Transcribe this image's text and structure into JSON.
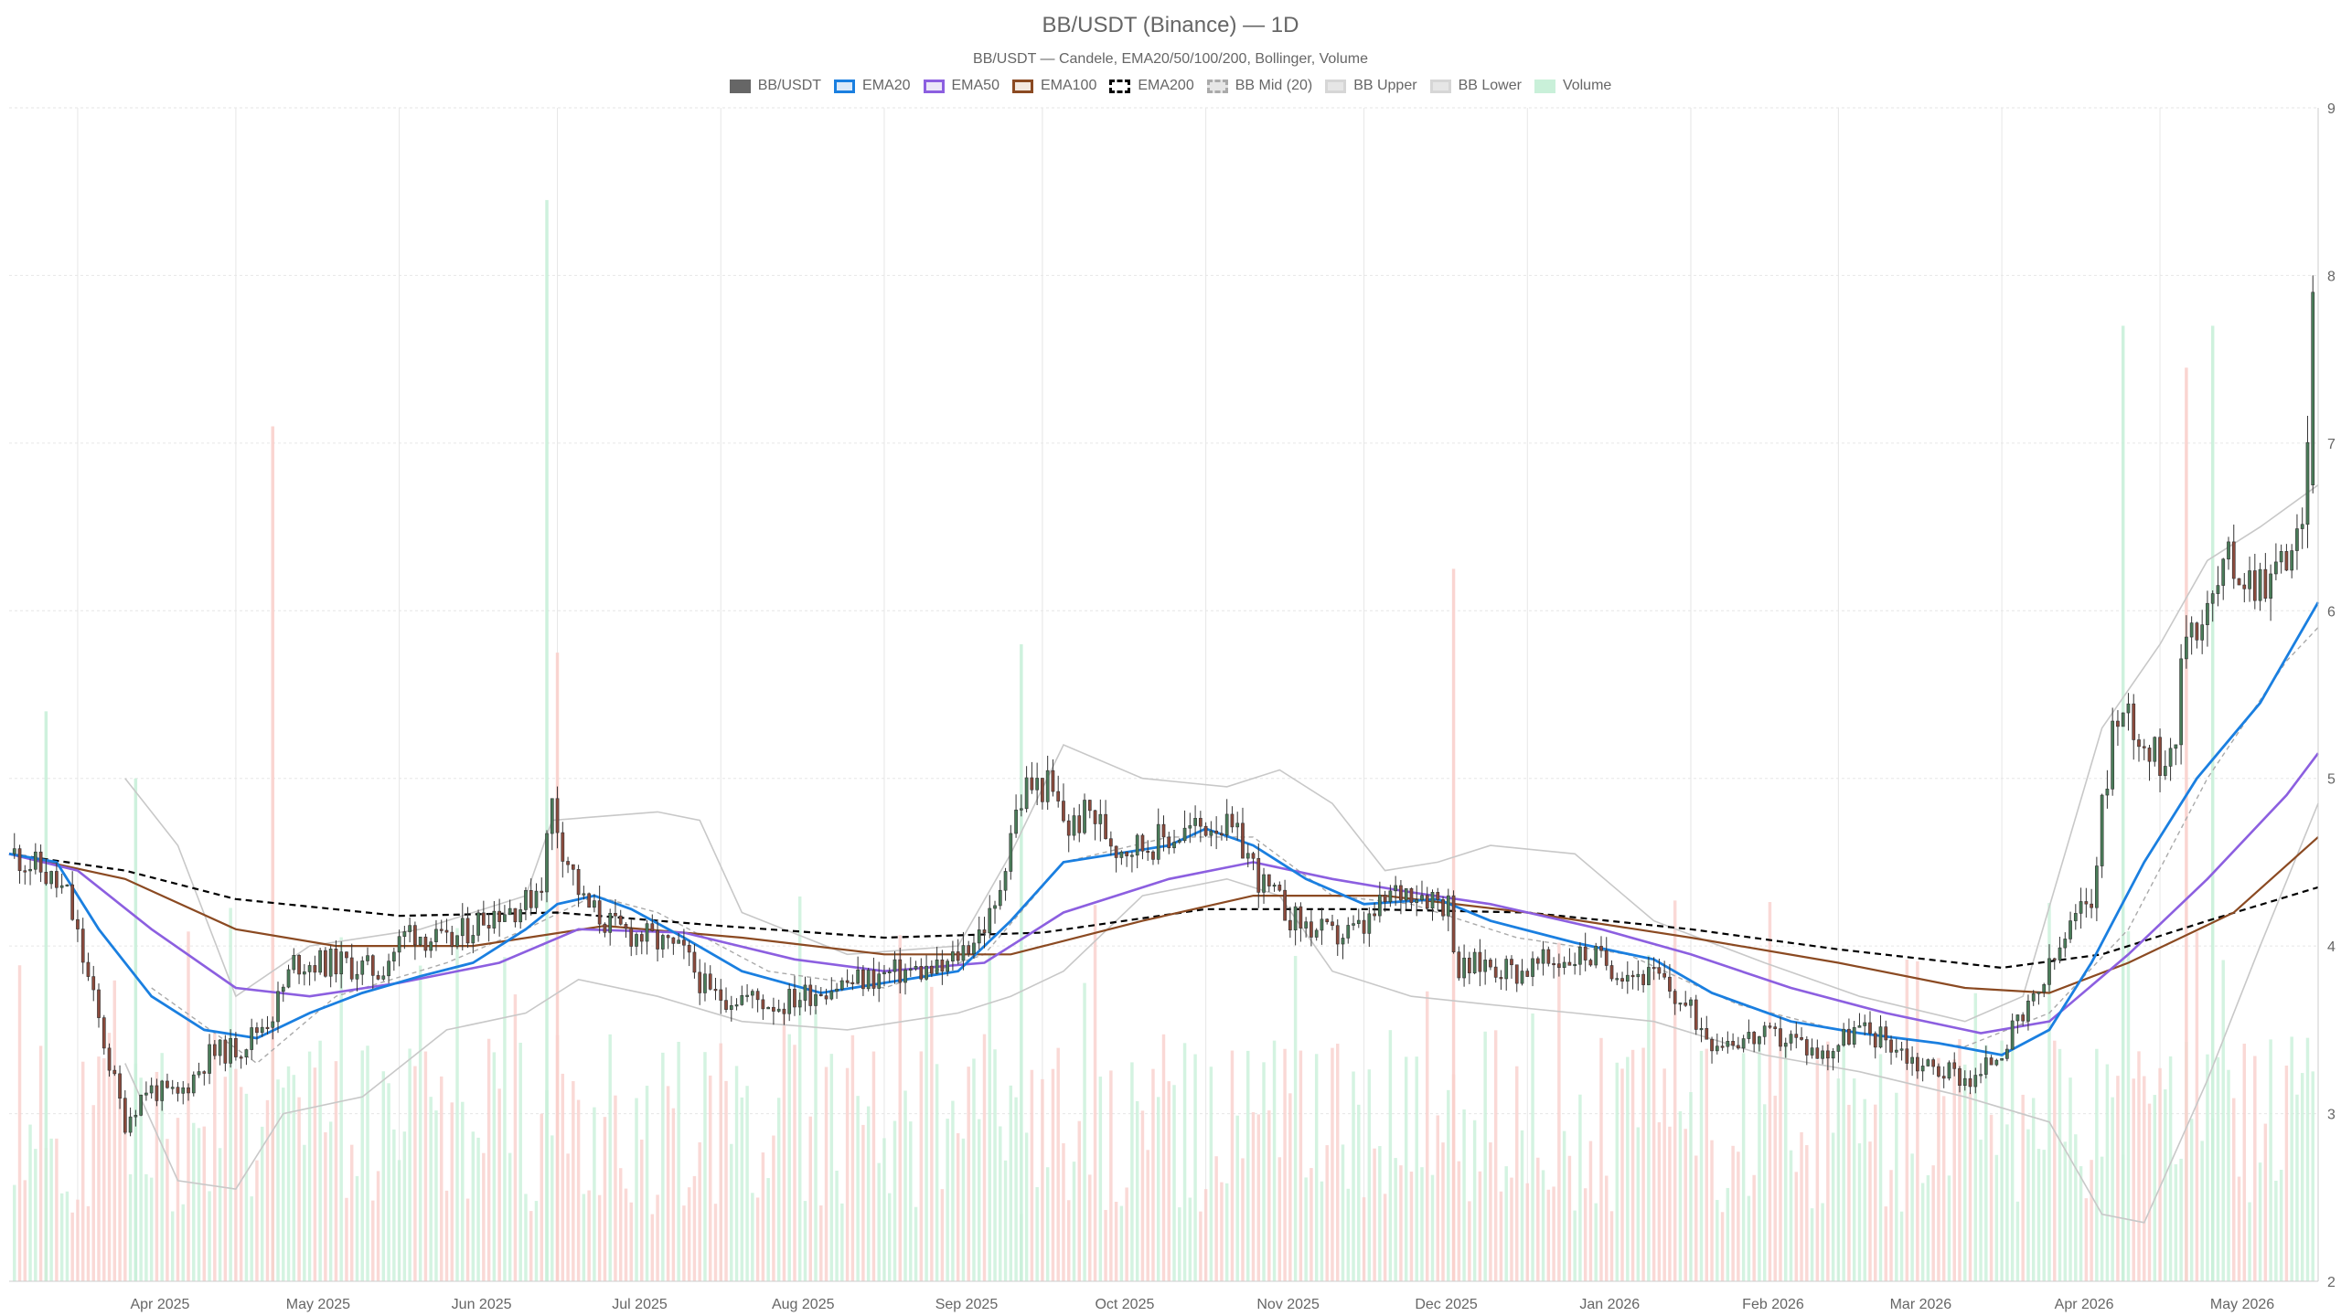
{
  "title": "BB/USDT (Binance) — 1D",
  "subtitle": "BB/USDT — Candele, EMA20/50/100/200, Bollinger, Volume",
  "legend": [
    {
      "label": "BB/USDT",
      "icon": "candle-swatch",
      "fill": "#666666",
      "stroke": "#666666",
      "dashed": false
    },
    {
      "label": "EMA20",
      "icon": "line-swatch",
      "fill": "#dbe9f9",
      "stroke": "#1a7fe0",
      "dashed": false
    },
    {
      "label": "EMA50",
      "icon": "line-swatch",
      "fill": "#ece6f8",
      "stroke": "#8c5fe0",
      "dashed": false
    },
    {
      "label": "EMA100",
      "icon": "line-swatch",
      "fill": "#f3e9e0",
      "stroke": "#8b4a22",
      "dashed": false
    },
    {
      "label": "EMA200",
      "icon": "line-swatch",
      "fill": "#ffffff",
      "stroke": "#000000",
      "dashed": true
    },
    {
      "label": "BB Mid (20)",
      "icon": "line-swatch",
      "fill": "#e6e6e6",
      "stroke": "#aaaaaa",
      "dashed": true
    },
    {
      "label": "BB Upper",
      "icon": "line-swatch",
      "fill": "#e6e6e6",
      "stroke": "#d6d6d6",
      "dashed": false
    },
    {
      "label": "BB Lower",
      "icon": "line-swatch",
      "fill": "#e6e6e6",
      "stroke": "#d6d6d6",
      "dashed": false
    },
    {
      "label": "Volume",
      "icon": "bar-swatch",
      "fill": "#c9f0d9",
      "stroke": "#c9f0d9",
      "dashed": false
    }
  ],
  "colors": {
    "up": "#4a7c59",
    "down": "#8b4a3c",
    "ema20": "#1a7fe0",
    "ema50": "#8c5fe0",
    "ema100": "#8b4a22",
    "ema200": "#000000",
    "bb_mid": "#aaaaaa",
    "bb_band": "#c8c8c8",
    "vol_up": "#c9f0d9",
    "vol_down": "#f9d0cc",
    "grid": "#e6e6e6"
  },
  "chart_data": {
    "type": "candlestick",
    "title": "BB/USDT (Binance) — 1D",
    "ylim": [
      2,
      9
    ],
    "y_ticks": [
      "2",
      "3",
      "4",
      "5",
      "6",
      "7",
      "8",
      "9"
    ],
    "y_axis_position": "right",
    "x_range": [
      "2025-03-19",
      "2026-05-31"
    ],
    "x_ticks": [
      {
        "date": "2025-04-01",
        "label": "Apr 2025"
      },
      {
        "date": "2025-05-01",
        "label": "May 2025"
      },
      {
        "date": "2025-06-01",
        "label": "Jun 2025"
      },
      {
        "date": "2025-07-01",
        "label": "Jul 2025"
      },
      {
        "date": "2025-08-01",
        "label": "Aug 2025"
      },
      {
        "date": "2025-09-01",
        "label": "Sep 2025"
      },
      {
        "date": "2025-10-01",
        "label": "Oct 2025"
      },
      {
        "date": "2025-11-01",
        "label": "Nov 2025"
      },
      {
        "date": "2025-12-01",
        "label": "Dec 2025"
      },
      {
        "date": "2026-01-01",
        "label": "Jan 2026"
      },
      {
        "date": "2026-02-01",
        "label": "Feb 2026"
      },
      {
        "date": "2026-03-01",
        "label": "Mar 2026"
      },
      {
        "date": "2026-04-01",
        "label": "Apr 2026"
      },
      {
        "date": "2026-05-01",
        "label": "May 2026"
      }
    ],
    "grid": true,
    "legend_position": "top-center",
    "price_path": [
      [
        "2025-03-20",
        4.55
      ],
      [
        "2025-03-25",
        4.45
      ],
      [
        "2025-03-30",
        4.3
      ],
      [
        "2025-04-03",
        3.8
      ],
      [
        "2025-04-07",
        3.3
      ],
      [
        "2025-04-10",
        2.95
      ],
      [
        "2025-04-14",
        3.15
      ],
      [
        "2025-04-20",
        3.1
      ],
      [
        "2025-04-26",
        3.35
      ],
      [
        "2025-05-02",
        3.4
      ],
      [
        "2025-05-08",
        3.6
      ],
      [
        "2025-05-12",
        3.9
      ],
      [
        "2025-05-20",
        3.9
      ],
      [
        "2025-05-28",
        3.85
      ],
      [
        "2025-06-03",
        4.1
      ],
      [
        "2025-06-10",
        4.0
      ],
      [
        "2025-06-18",
        4.2
      ],
      [
        "2025-06-25",
        4.25
      ],
      [
        "2025-06-28",
        4.4
      ],
      [
        "2025-06-30",
        4.85
      ],
      [
        "2025-07-02",
        4.6
      ],
      [
        "2025-07-06",
        4.25
      ],
      [
        "2025-07-12",
        4.1
      ],
      [
        "2025-07-18",
        4.05
      ],
      [
        "2025-07-25",
        3.95
      ],
      [
        "2025-07-30",
        3.7
      ],
      [
        "2025-08-05",
        3.7
      ],
      [
        "2025-08-12",
        3.65
      ],
      [
        "2025-08-20",
        3.75
      ],
      [
        "2025-08-28",
        3.8
      ],
      [
        "2025-09-05",
        3.85
      ],
      [
        "2025-09-12",
        3.85
      ],
      [
        "2025-09-18",
        4.05
      ],
      [
        "2025-09-22",
        4.2
      ],
      [
        "2025-09-25",
        4.7
      ],
      [
        "2025-09-28",
        4.95
      ],
      [
        "2025-10-02",
        4.95
      ],
      [
        "2025-10-06",
        4.7
      ],
      [
        "2025-10-10",
        4.8
      ],
      [
        "2025-10-15",
        4.6
      ],
      [
        "2025-10-20",
        4.6
      ],
      [
        "2025-10-25",
        4.65
      ],
      [
        "2025-10-30",
        4.7
      ],
      [
        "2025-11-03",
        4.75
      ],
      [
        "2025-11-08",
        4.6
      ],
      [
        "2025-11-12",
        4.35
      ],
      [
        "2025-11-18",
        4.15
      ],
      [
        "2025-11-25",
        4.05
      ],
      [
        "2025-12-01",
        4.1
      ],
      [
        "2025-12-06",
        4.3
      ],
      [
        "2025-12-10",
        4.35
      ],
      [
        "2025-12-14",
        4.3
      ],
      [
        "2025-12-17",
        4.25
      ],
      [
        "2025-12-19",
        3.85
      ],
      [
        "2025-12-24",
        3.9
      ],
      [
        "2025-12-30",
        3.85
      ],
      [
        "2026-01-05",
        3.9
      ],
      [
        "2026-01-12",
        3.95
      ],
      [
        "2026-01-20",
        3.85
      ],
      [
        "2026-01-26",
        3.8
      ],
      [
        "2026-02-01",
        3.6
      ],
      [
        "2026-02-05",
        3.45
      ],
      [
        "2026-02-12",
        3.45
      ],
      [
        "2026-02-20",
        3.45
      ],
      [
        "2026-02-26",
        3.35
      ],
      [
        "2026-03-04",
        3.5
      ],
      [
        "2026-03-10",
        3.45
      ],
      [
        "2026-03-16",
        3.3
      ],
      [
        "2026-03-22",
        3.25
      ],
      [
        "2026-03-27",
        3.2
      ],
      [
        "2026-04-01",
        3.4
      ],
      [
        "2026-04-06",
        3.6
      ],
      [
        "2026-04-10",
        3.85
      ],
      [
        "2026-04-14",
        4.1
      ],
      [
        "2026-04-18",
        4.3
      ],
      [
        "2026-04-22",
        5.3
      ],
      [
        "2026-04-25",
        5.4
      ],
      [
        "2026-04-28",
        5.2
      ],
      [
        "2026-05-01",
        5.1
      ],
      [
        "2026-05-04",
        5.3
      ],
      [
        "2026-05-06",
        5.9
      ],
      [
        "2026-05-10",
        6.0
      ],
      [
        "2026-05-14",
        6.3
      ],
      [
        "2026-05-18",
        6.2
      ],
      [
        "2026-05-22",
        6.2
      ],
      [
        "2026-05-26",
        6.4
      ],
      [
        "2026-05-28",
        6.4
      ],
      [
        "2026-05-30",
        7.9
      ]
    ],
    "ema20": [
      [
        "2025-03-19",
        4.55
      ],
      [
        "2025-03-28",
        4.5
      ],
      [
        "2025-04-05",
        4.1
      ],
      [
        "2025-04-15",
        3.7
      ],
      [
        "2025-04-25",
        3.5
      ],
      [
        "2025-05-05",
        3.45
      ],
      [
        "2025-05-15",
        3.6
      ],
      [
        "2025-05-25",
        3.72
      ],
      [
        "2025-06-05",
        3.82
      ],
      [
        "2025-06-15",
        3.9
      ],
      [
        "2025-06-25",
        4.1
      ],
      [
        "2025-07-01",
        4.25
      ],
      [
        "2025-07-08",
        4.3
      ],
      [
        "2025-07-15",
        4.22
      ],
      [
        "2025-07-25",
        4.05
      ],
      [
        "2025-08-05",
        3.85
      ],
      [
        "2025-08-20",
        3.72
      ],
      [
        "2025-09-01",
        3.78
      ],
      [
        "2025-09-15",
        3.85
      ],
      [
        "2025-09-25",
        4.15
      ],
      [
        "2025-10-05",
        4.5
      ],
      [
        "2025-10-15",
        4.55
      ],
      [
        "2025-10-25",
        4.6
      ],
      [
        "2025-11-01",
        4.7
      ],
      [
        "2025-11-10",
        4.6
      ],
      [
        "2025-11-20",
        4.4
      ],
      [
        "2025-12-01",
        4.25
      ],
      [
        "2025-12-15",
        4.28
      ],
      [
        "2025-12-25",
        4.15
      ],
      [
        "2026-01-10",
        4.02
      ],
      [
        "2026-01-25",
        3.92
      ],
      [
        "2026-02-05",
        3.72
      ],
      [
        "2026-02-20",
        3.55
      ],
      [
        "2026-03-05",
        3.48
      ],
      [
        "2026-03-20",
        3.42
      ],
      [
        "2026-04-01",
        3.35
      ],
      [
        "2026-04-10",
        3.5
      ],
      [
        "2026-04-18",
        3.9
      ],
      [
        "2026-04-28",
        4.5
      ],
      [
        "2026-05-08",
        5.0
      ],
      [
        "2026-05-20",
        5.45
      ],
      [
        "2026-05-31",
        6.05
      ]
    ],
    "ema50": [
      [
        "2025-03-19",
        4.55
      ],
      [
        "2025-04-01",
        4.45
      ],
      [
        "2025-04-15",
        4.1
      ],
      [
        "2025-05-01",
        3.75
      ],
      [
        "2025-05-15",
        3.7
      ],
      [
        "2025-06-01",
        3.78
      ],
      [
        "2025-06-20",
        3.9
      ],
      [
        "2025-07-05",
        4.1
      ],
      [
        "2025-07-25",
        4.08
      ],
      [
        "2025-08-15",
        3.92
      ],
      [
        "2025-09-01",
        3.85
      ],
      [
        "2025-09-20",
        3.9
      ],
      [
        "2025-10-05",
        4.2
      ],
      [
        "2025-10-25",
        4.4
      ],
      [
        "2025-11-10",
        4.5
      ],
      [
        "2025-11-25",
        4.4
      ],
      [
        "2025-12-10",
        4.32
      ],
      [
        "2025-12-25",
        4.25
      ],
      [
        "2026-01-15",
        4.1
      ],
      [
        "2026-02-01",
        3.95
      ],
      [
        "2026-02-20",
        3.75
      ],
      [
        "2026-03-10",
        3.6
      ],
      [
        "2026-03-28",
        3.48
      ],
      [
        "2026-04-10",
        3.55
      ],
      [
        "2026-04-25",
        3.95
      ],
      [
        "2026-05-10",
        4.4
      ],
      [
        "2026-05-25",
        4.9
      ],
      [
        "2026-05-31",
        5.15
      ]
    ],
    "ema100": [
      [
        "2025-03-19",
        4.55
      ],
      [
        "2025-04-10",
        4.4
      ],
      [
        "2025-05-01",
        4.1
      ],
      [
        "2025-05-20",
        4.0
      ],
      [
        "2025-06-15",
        4.0
      ],
      [
        "2025-07-10",
        4.12
      ],
      [
        "2025-08-05",
        4.05
      ],
      [
        "2025-09-01",
        3.95
      ],
      [
        "2025-09-25",
        3.95
      ],
      [
        "2025-10-20",
        4.15
      ],
      [
        "2025-11-10",
        4.3
      ],
      [
        "2025-12-05",
        4.3
      ],
      [
        "2026-01-01",
        4.2
      ],
      [
        "2026-02-01",
        4.05
      ],
      [
        "2026-03-01",
        3.9
      ],
      [
        "2026-03-25",
        3.75
      ],
      [
        "2026-04-10",
        3.72
      ],
      [
        "2026-04-25",
        3.9
      ],
      [
        "2026-05-15",
        4.2
      ],
      [
        "2026-05-31",
        4.65
      ]
    ],
    "ema200": [
      [
        "2025-03-19",
        4.55
      ],
      [
        "2025-04-10",
        4.45
      ],
      [
        "2025-05-01",
        4.28
      ],
      [
        "2025-06-01",
        4.18
      ],
      [
        "2025-07-01",
        4.2
      ],
      [
        "2025-08-01",
        4.12
      ],
      [
        "2025-09-01",
        4.05
      ],
      [
        "2025-10-01",
        4.08
      ],
      [
        "2025-11-01",
        4.22
      ],
      [
        "2025-12-01",
        4.22
      ],
      [
        "2026-01-01",
        4.2
      ],
      [
        "2026-02-01",
        4.1
      ],
      [
        "2026-03-01",
        3.98
      ],
      [
        "2026-04-01",
        3.87
      ],
      [
        "2026-04-20",
        3.95
      ],
      [
        "2026-05-10",
        4.15
      ],
      [
        "2026-05-31",
        4.35
      ]
    ],
    "bb_mid": [
      [
        "2025-04-15",
        3.75
      ],
      [
        "2025-05-05",
        3.3
      ],
      [
        "2025-05-20",
        3.7
      ],
      [
        "2025-06-10",
        3.9
      ],
      [
        "2025-06-25",
        4.1
      ],
      [
        "2025-07-08",
        4.3
      ],
      [
        "2025-07-20",
        4.2
      ],
      [
        "2025-08-10",
        3.85
      ],
      [
        "2025-09-01",
        3.75
      ],
      [
        "2025-09-20",
        3.95
      ],
      [
        "2025-10-05",
        4.5
      ],
      [
        "2025-10-25",
        4.65
      ],
      [
        "2025-11-10",
        4.65
      ],
      [
        "2025-11-25",
        4.3
      ],
      [
        "2025-12-10",
        4.25
      ],
      [
        "2025-12-30",
        4.05
      ],
      [
        "2026-01-20",
        3.95
      ],
      [
        "2026-02-10",
        3.65
      ],
      [
        "2026-03-01",
        3.5
      ],
      [
        "2026-03-25",
        3.4
      ],
      [
        "2026-04-10",
        3.6
      ],
      [
        "2026-04-25",
        4.1
      ],
      [
        "2026-05-10",
        5.0
      ],
      [
        "2026-05-25",
        5.7
      ],
      [
        "2026-05-31",
        5.9
      ]
    ],
    "bb_upper": [
      [
        "2025-04-10",
        5.0
      ],
      [
        "2025-04-20",
        4.6
      ],
      [
        "2025-05-01",
        3.7
      ],
      [
        "2025-05-15",
        4.0
      ],
      [
        "2025-06-05",
        4.1
      ],
      [
        "2025-06-25",
        4.3
      ],
      [
        "2025-06-30",
        4.75
      ],
      [
        "2025-07-20",
        4.8
      ],
      [
        "2025-07-28",
        4.75
      ],
      [
        "2025-08-05",
        4.2
      ],
      [
        "2025-08-25",
        3.95
      ],
      [
        "2025-09-15",
        4.0
      ],
      [
        "2025-09-25",
        4.55
      ],
      [
        "2025-10-05",
        5.2
      ],
      [
        "2025-10-20",
        5.0
      ],
      [
        "2025-11-05",
        4.95
      ],
      [
        "2025-11-15",
        5.05
      ],
      [
        "2025-11-25",
        4.85
      ],
      [
        "2025-12-05",
        4.45
      ],
      [
        "2025-12-15",
        4.5
      ],
      [
        "2025-12-25",
        4.6
      ],
      [
        "2026-01-10",
        4.55
      ],
      [
        "2026-01-25",
        4.15
      ],
      [
        "2026-02-15",
        3.9
      ],
      [
        "2026-03-05",
        3.7
      ],
      [
        "2026-03-25",
        3.55
      ],
      [
        "2026-04-05",
        3.7
      ],
      [
        "2026-04-20",
        5.3
      ],
      [
        "2026-05-01",
        5.8
      ],
      [
        "2026-05-10",
        6.3
      ],
      [
        "2026-05-20",
        6.5
      ],
      [
        "2026-05-31",
        6.75
      ]
    ],
    "bb_lower": [
      [
        "2025-04-10",
        3.3
      ],
      [
        "2025-04-20",
        2.6
      ],
      [
        "2025-05-01",
        2.55
      ],
      [
        "2025-05-10",
        3.0
      ],
      [
        "2025-05-25",
        3.1
      ],
      [
        "2025-06-10",
        3.5
      ],
      [
        "2025-06-25",
        3.6
      ],
      [
        "2025-07-05",
        3.8
      ],
      [
        "2025-07-20",
        3.7
      ],
      [
        "2025-08-05",
        3.55
      ],
      [
        "2025-08-25",
        3.5
      ],
      [
        "2025-09-15",
        3.6
      ],
      [
        "2025-09-25",
        3.7
      ],
      [
        "2025-10-05",
        3.85
      ],
      [
        "2025-10-20",
        4.3
      ],
      [
        "2025-11-05",
        4.4
      ],
      [
        "2025-11-15",
        4.3
      ],
      [
        "2025-11-25",
        3.85
      ],
      [
        "2025-12-10",
        3.7
      ],
      [
        "2025-12-25",
        3.65
      ],
      [
        "2026-01-10",
        3.6
      ],
      [
        "2026-01-25",
        3.55
      ],
      [
        "2026-02-15",
        3.35
      ],
      [
        "2026-03-05",
        3.25
      ],
      [
        "2026-03-25",
        3.1
      ],
      [
        "2026-04-10",
        2.95
      ],
      [
        "2026-04-20",
        2.4
      ],
      [
        "2026-04-28",
        2.35
      ],
      [
        "2026-05-10",
        3.2
      ],
      [
        "2026-05-20",
        4.0
      ],
      [
        "2026-05-31",
        4.85
      ]
    ],
    "volume_spikes": [
      {
        "date": "2025-05-08",
        "level": 7.1,
        "direction": "down"
      },
      {
        "date": "2025-06-29",
        "level": 8.45,
        "direction": "up"
      },
      {
        "date": "2025-07-01",
        "level": 5.75,
        "direction": "down"
      },
      {
        "date": "2025-09-27",
        "level": 5.8,
        "direction": "up"
      },
      {
        "date": "2025-12-18",
        "level": 6.25,
        "direction": "down"
      },
      {
        "date": "2026-04-24",
        "level": 7.7,
        "direction": "up"
      },
      {
        "date": "2026-05-06",
        "level": 7.45,
        "direction": "down"
      },
      {
        "date": "2026-05-11",
        "level": 7.7,
        "direction": "up"
      },
      {
        "date": "2025-03-26",
        "level": 5.4,
        "direction": "up"
      },
      {
        "date": "2025-04-12",
        "level": 5.0,
        "direction": "up"
      }
    ]
  }
}
